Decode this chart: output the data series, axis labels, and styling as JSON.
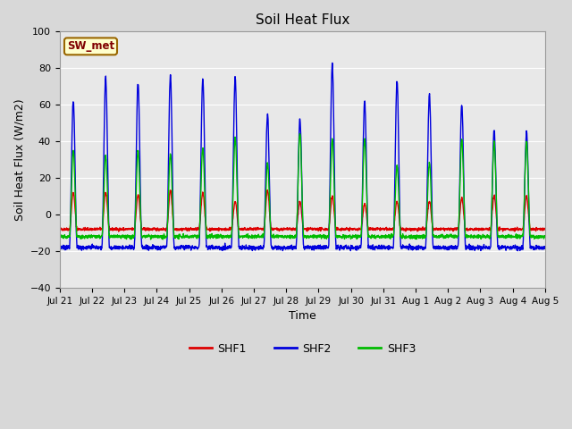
{
  "title": "Soil Heat Flux",
  "xlabel": "Time",
  "ylabel": "Soil Heat Flux (W/m2)",
  "ylim": [
    -40,
    100
  ],
  "yticks": [
    -40,
    -20,
    0,
    20,
    40,
    60,
    80,
    100
  ],
  "label_box_text": "SW_met",
  "label_box_facecolor": "#FFFFCC",
  "label_box_edgecolor": "#996600",
  "label_box_textcolor": "#800000",
  "background_color": "#D8D8D8",
  "plot_bg_color": "#E8E8E8",
  "shf1_color": "#DD0000",
  "shf2_color": "#0000DD",
  "shf3_color": "#00BB00",
  "line_width": 1.0,
  "xtick_labels": [
    "Jul 21",
    "Jul 22",
    "Jul 23",
    "Jul 24",
    "Jul 25",
    "Jul 26",
    "Jul 27",
    "Jul 28",
    "Jul 29",
    "Jul 30",
    "Jul 31",
    "Aug 1",
    "Aug 2",
    "Aug 3",
    "Aug 4",
    "Aug 5"
  ],
  "num_days": 15,
  "points_per_day": 144,
  "shf1_day_peaks": [
    12,
    12,
    11,
    13,
    12,
    7,
    13,
    7,
    10,
    6,
    7,
    7,
    9,
    10,
    10
  ],
  "shf2_day_peaks": [
    62,
    75,
    72,
    76,
    74,
    75,
    55,
    52,
    82,
    62,
    73,
    66,
    60,
    46,
    45
  ],
  "shf3_day_peaks": [
    35,
    32,
    35,
    33,
    36,
    42,
    28,
    45,
    41,
    41,
    27,
    28,
    41,
    39,
    40
  ],
  "shf1_night_val": -8,
  "shf2_night_val": -18,
  "shf3_night_val": -12,
  "grid_color": "#FFFFFF",
  "figsize": [
    6.4,
    4.8
  ],
  "dpi": 100
}
